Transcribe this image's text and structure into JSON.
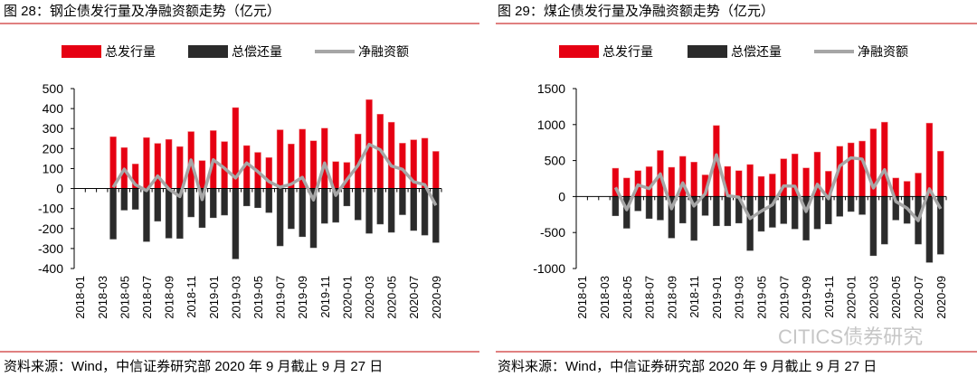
{
  "colors": {
    "issuance": "#e60012",
    "repayment": "#2b2b2b",
    "net": "#a6a6a6",
    "rule": "#c00000"
  },
  "legend": {
    "issuance": "总发行量",
    "repayment": "总偿还量",
    "net": "净融资额"
  },
  "source": "资料来源：Wind，中信证券研究部 2020 年 9 月截止 9 月 27 日",
  "watermark": "CITICS债券研究",
  "chart_data": [
    {
      "type": "bar",
      "title": "图 28：钢企债发行量及净融资额走势（亿元）",
      "ylim": [
        -400,
        500
      ],
      "yticks": [
        500,
        400,
        300,
        200,
        100,
        0,
        -100,
        -200,
        -300,
        -400
      ],
      "xtick_labels": [
        "2018-01",
        "2018-03",
        "2018-05",
        "2018-07",
        "2018-09",
        "2018-11",
        "2019-01",
        "2019-03",
        "2019-05",
        "2019-07",
        "2019-09",
        "2019-11",
        "2020-01",
        "2020-03",
        "2020-05",
        "2020-07",
        "2020-09"
      ],
      "categories": [
        "2018-01",
        "2018-02",
        "2018-03",
        "2018-04",
        "2018-05",
        "2018-06",
        "2018-07",
        "2018-08",
        "2018-09",
        "2018-10",
        "2018-11",
        "2018-12",
        "2019-01",
        "2019-02",
        "2019-03",
        "2019-04",
        "2019-05",
        "2019-06",
        "2019-07",
        "2019-08",
        "2019-09",
        "2019-10",
        "2019-11",
        "2019-12",
        "2020-01",
        "2020-02",
        "2020-03",
        "2020-04",
        "2020-05",
        "2020-06",
        "2020-07",
        "2020-08",
        "2020-09"
      ],
      "series": [
        {
          "name": "总发行量",
          "kind": "bar",
          "values": [
            null,
            null,
            null,
            259,
            205,
            123,
            255,
            226,
            246,
            210,
            285,
            140,
            290,
            235,
            405,
            215,
            181,
            155,
            294,
            223,
            297,
            239,
            302,
            135,
            131,
            273,
            445,
            372,
            332,
            227,
            244,
            252,
            186
          ]
        },
        {
          "name": "总偿还量",
          "kind": "bar",
          "values": [
            null,
            null,
            null,
            -253,
            -108,
            -104,
            -265,
            -163,
            -248,
            -250,
            -142,
            -195,
            -146,
            -133,
            -352,
            -87,
            -96,
            -120,
            -287,
            -201,
            -241,
            -296,
            -174,
            -169,
            -87,
            -157,
            -224,
            -178,
            -219,
            -131,
            -210,
            -233,
            -270
          ]
        },
        {
          "name": "净融资额",
          "kind": "line",
          "values": [
            null,
            null,
            null,
            6,
            97,
            19,
            -10,
            63,
            -2,
            -40,
            143,
            -55,
            144,
            102,
            53,
            128,
            85,
            35,
            7,
            22,
            56,
            -57,
            128,
            -34,
            44,
            116,
            221,
            194,
            113,
            96,
            34,
            19,
            -84
          ]
        }
      ]
    },
    {
      "type": "bar",
      "title": "图 29：煤企债发行量及净融资额走势（亿元）",
      "ylim": [
        -1000,
        1500
      ],
      "yticks": [
        1500,
        1000,
        500,
        0,
        -500,
        -1000
      ],
      "xtick_labels": [
        "2018-01",
        "2018-03",
        "2018-05",
        "2018-07",
        "2018-09",
        "2018-11",
        "2019-01",
        "2019-03",
        "2019-05",
        "2019-07",
        "2019-09",
        "2019-11",
        "2020-01",
        "2020-03",
        "2020-05",
        "2020-07",
        "2020-09"
      ],
      "categories": [
        "2018-01",
        "2018-02",
        "2018-03",
        "2018-04",
        "2018-05",
        "2018-06",
        "2018-07",
        "2018-08",
        "2018-09",
        "2018-10",
        "2018-11",
        "2018-12",
        "2019-01",
        "2019-02",
        "2019-03",
        "2019-04",
        "2019-05",
        "2019-06",
        "2019-07",
        "2019-08",
        "2019-09",
        "2019-10",
        "2019-11",
        "2019-12",
        "2020-01",
        "2020-02",
        "2020-03",
        "2020-04",
        "2020-05",
        "2020-06",
        "2020-07",
        "2020-08",
        "2020-09"
      ],
      "series": [
        {
          "name": "总发行量",
          "kind": "bar",
          "values": [
            null,
            null,
            null,
            394,
            258,
            360,
            415,
            640,
            407,
            559,
            479,
            301,
            987,
            419,
            360,
            445,
            280,
            314,
            525,
            593,
            398,
            619,
            352,
            699,
            746,
            771,
            941,
            1034,
            258,
            212,
            326,
            1021,
            631
          ]
        },
        {
          "name": "总偿还量",
          "kind": "bar",
          "values": [
            null,
            null,
            null,
            -267,
            -441,
            -199,
            -305,
            -326,
            -576,
            -369,
            -610,
            -263,
            -407,
            -407,
            -369,
            -750,
            -483,
            -428,
            -377,
            -449,
            -606,
            -449,
            -381,
            -275,
            -208,
            -250,
            -822,
            -661,
            -326,
            -373,
            -661,
            -915,
            -801
          ]
        },
        {
          "name": "净融资额",
          "kind": "line",
          "values": [
            null,
            null,
            null,
            127,
            -183,
            161,
            110,
            314,
            -169,
            190,
            -131,
            38,
            580,
            12,
            -9,
            -305,
            -203,
            -114,
            148,
            144,
            -208,
            170,
            -29,
            424,
            538,
            521,
            119,
            373,
            -68,
            -161,
            -335,
            106,
            -170
          ]
        }
      ]
    }
  ]
}
